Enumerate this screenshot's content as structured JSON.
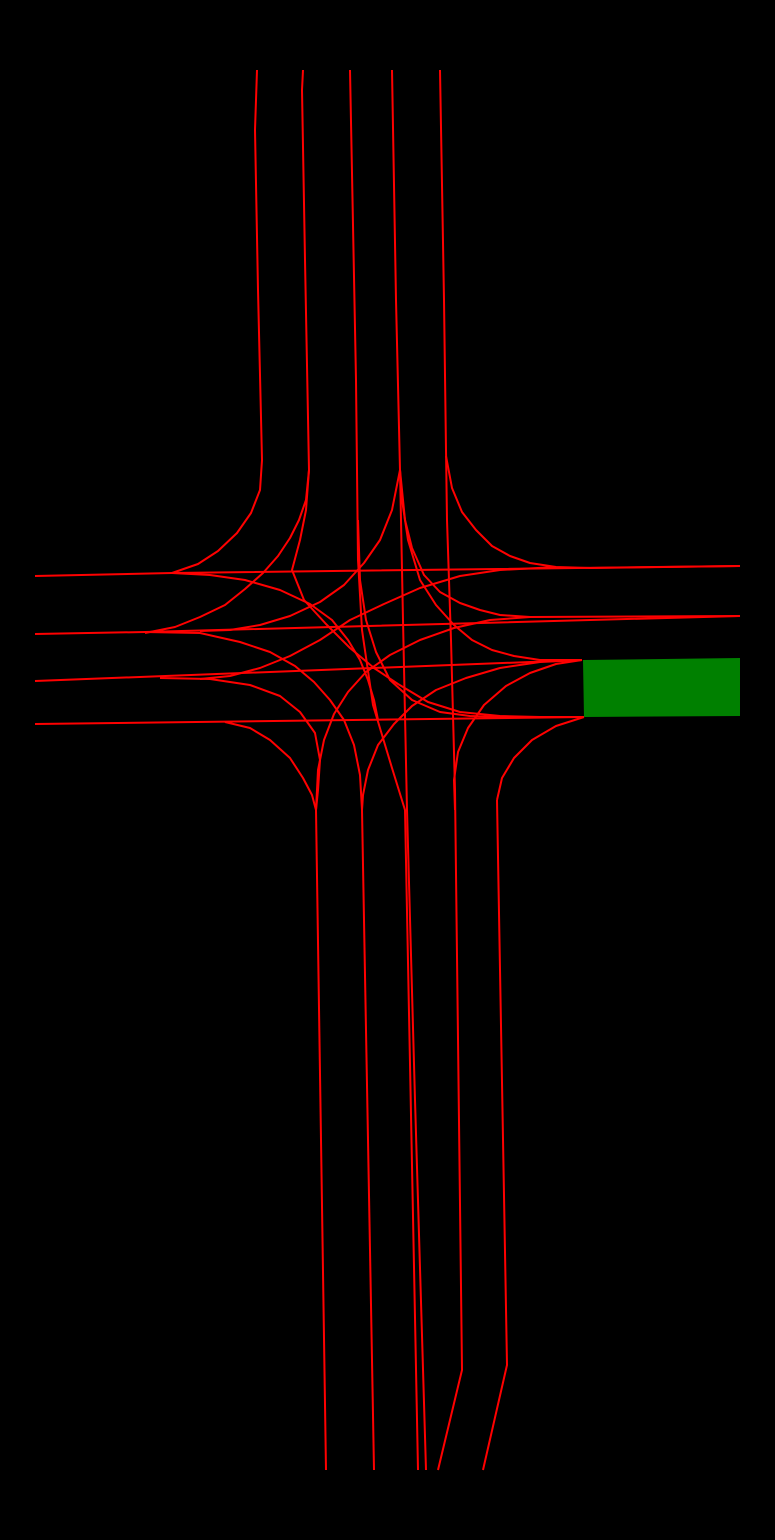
{
  "map": {
    "background_color": "#000000",
    "lane_color": "#ff0000",
    "highlight_color": "#008000",
    "highlighted_lane": "east-approach-lane-3",
    "icon": "lane-centerline-icon"
  }
}
